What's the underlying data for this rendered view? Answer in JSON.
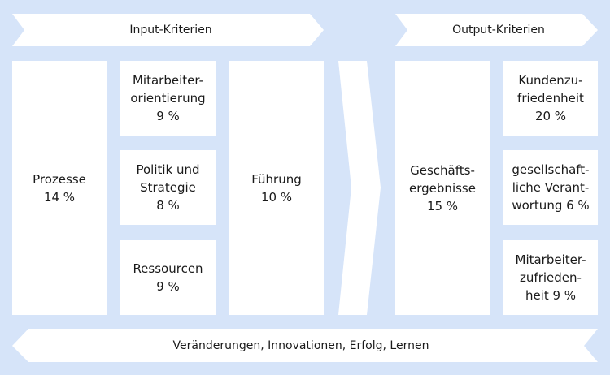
{
  "input_header": "Input-Kriterien",
  "output_header": "Output-Kriterien",
  "bottom_arrow": "Veränderungen, Innovationen, Erfolg, Lernen",
  "boxes": {
    "prozesse": "Prozesse\n14 %",
    "mitarbeiterorientierung": "Mitarbeiter-\norientierung\n9 %",
    "politik": "Politik und\nStrategie\n8 %",
    "ressourcen": "Ressourcen\n9 %",
    "fuehrung": "Führung\n10 %",
    "geschaeftsergebnisse": "Geschäfts-\nergebnisse\n15 %",
    "kundenzufriedenheit": "Kundenzu-\nfriedenheit\n20 %",
    "gesellschaft": "gesellschaft-\nliche Verant-\nwortung 6 %",
    "mitarbeiterzufriedenheit": "Mitarbeiter-\nzufrieden-\nheit 9 %"
  },
  "colors": {
    "background": "#d6e4f9",
    "box_fill": "#ffffff",
    "text": "#1a1a1a"
  }
}
